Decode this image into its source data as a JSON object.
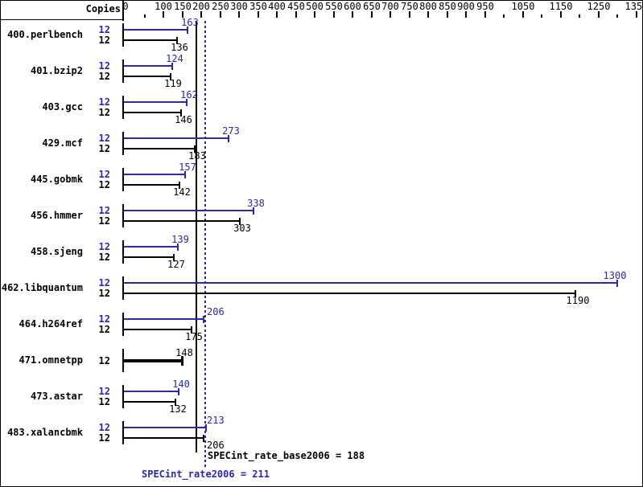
{
  "header": {
    "copies_label": "Copies"
  },
  "summary": {
    "base_text": "SPECint_rate_base2006 = 188",
    "peak_text": "SPECint_rate2006 = 211"
  },
  "colors": {
    "peak_blue": "#2a2aa5",
    "base_black": "#000000",
    "background": "#ffffff"
  },
  "chart_data": {
    "type": "bar",
    "orientation": "horizontal",
    "title": "",
    "xlabel": "",
    "ylabel": "Copies",
    "axis": {
      "min": 0,
      "max": 1360,
      "labeled_ticks": [
        0,
        100,
        150,
        200,
        250,
        300,
        350,
        400,
        450,
        500,
        550,
        600,
        650,
        700,
        750,
        800,
        850,
        900,
        950,
        1050,
        1150,
        1250,
        1350
      ],
      "minor_ticks": [
        50,
        1000,
        1100,
        1200,
        1300
      ],
      "grid": false
    },
    "series_meaning": {
      "peak": "SPECint_rate2006 (blue)",
      "base": "SPECint_rate_base2006 (black)"
    },
    "benchmarks": [
      {
        "name": "400.perlbench",
        "copies": 12,
        "peak": 163,
        "base": 136,
        "base_only": false
      },
      {
        "name": "401.bzip2",
        "copies": 12,
        "peak": 124,
        "base": 119,
        "base_only": false
      },
      {
        "name": "403.gcc",
        "copies": 12,
        "peak": 162,
        "base": 146,
        "base_only": false
      },
      {
        "name": "429.mcf",
        "copies": 12,
        "peak": 273,
        "base": 183,
        "base_only": false
      },
      {
        "name": "445.gobmk",
        "copies": 12,
        "peak": 157,
        "base": 142,
        "base_only": false
      },
      {
        "name": "456.hmmer",
        "copies": 12,
        "peak": 338,
        "base": 303,
        "base_only": false
      },
      {
        "name": "458.sjeng",
        "copies": 12,
        "peak": 139,
        "base": 127,
        "base_only": false
      },
      {
        "name": "462.libquantum",
        "copies": 12,
        "peak": 1300,
        "base": 1190,
        "base_only": false
      },
      {
        "name": "464.h264ref",
        "copies": 12,
        "peak": 206,
        "base": 175,
        "base_only": false
      },
      {
        "name": "471.omnetpp",
        "copies": 12,
        "peak": null,
        "base": 148,
        "base_only": true
      },
      {
        "name": "473.astar",
        "copies": 12,
        "peak": 140,
        "base": 132,
        "base_only": false
      },
      {
        "name": "483.xalancbmk",
        "copies": 12,
        "peak": 213,
        "base": 206,
        "base_only": false
      }
    ],
    "reference_lines": [
      {
        "label": "SPECint_rate_base2006 = 188",
        "value": 188,
        "style": "solid",
        "color": "#000000"
      },
      {
        "label": "SPECint_rate2006 = 211",
        "value": 211,
        "style": "dotted",
        "color": "#2a2aa5"
      }
    ]
  }
}
